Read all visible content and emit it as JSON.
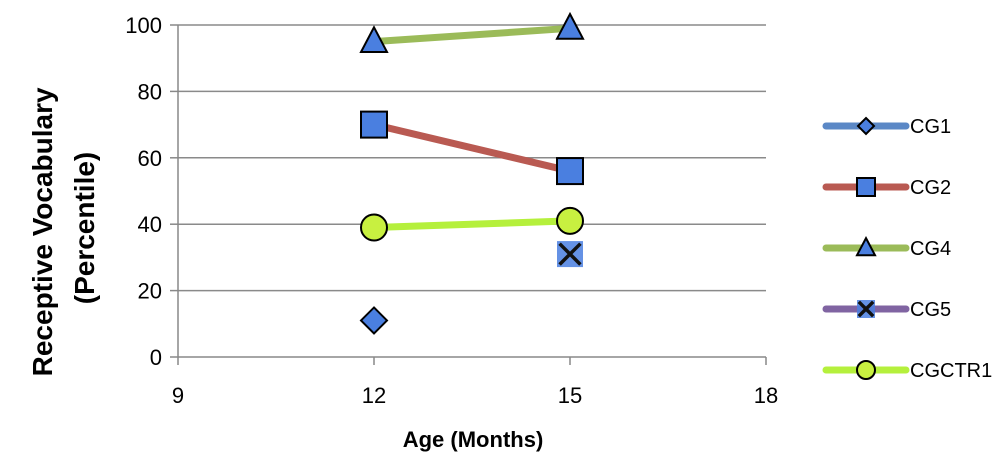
{
  "chart_data": {
    "type": "scatter",
    "title": "",
    "xlabel": "Age (Months)",
    "ylabel_lines": [
      "Receptive Vocabulary",
      "(Percentile)"
    ],
    "xlim": [
      9,
      18
    ],
    "ylim": [
      0,
      100
    ],
    "xticks": [
      9,
      12,
      15,
      18
    ],
    "yticks": [
      0,
      20,
      40,
      60,
      80,
      100
    ],
    "grid": "horizontal",
    "legend_position": "right",
    "series": [
      {
        "name": "CG1",
        "marker": "diamond",
        "line_color": "#5b88c6",
        "marker_color": "#4a7fe0",
        "x": [
          12
        ],
        "y": [
          11
        ]
      },
      {
        "name": "CG2",
        "marker": "square",
        "line_color": "#b95a52",
        "marker_color": "#4a7fe0",
        "x": [
          12,
          15
        ],
        "y": [
          70,
          56
        ]
      },
      {
        "name": "CG4",
        "marker": "triangle",
        "line_color": "#9bbb59",
        "marker_color": "#4a7fe0",
        "x": [
          12,
          15
        ],
        "y": [
          95,
          99
        ]
      },
      {
        "name": "CG5",
        "marker": "x",
        "line_color": "#8064a2",
        "marker_color": "#4a7fe0",
        "x": [
          15
        ],
        "y": [
          31
        ]
      },
      {
        "name": "CGCTR1",
        "marker": "circle",
        "line_color": "#b5f03c",
        "marker_color": "#c8f040",
        "x": [
          12,
          15
        ],
        "y": [
          39,
          41
        ]
      }
    ]
  }
}
